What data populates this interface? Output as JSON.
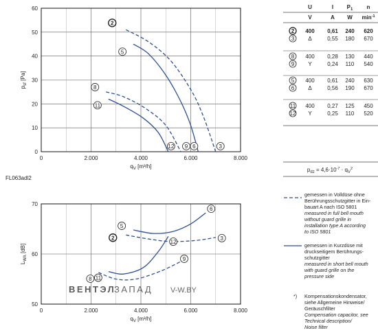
{
  "chart_data": [
    {
      "type": "line",
      "id": "FL063adl2",
      "caption": "FL063adl2",
      "xlabel": "qV [m³/h]",
      "ylabel": "pfl [Pa]",
      "xlim": [
        0,
        8000
      ],
      "ylim": [
        0,
        60
      ],
      "x_ticks": [
        0,
        2000,
        4000,
        6000,
        8000
      ],
      "x_tick_labels": [
        "0",
        "2.000",
        "4.000",
        "6.000",
        "8.000"
      ],
      "y_ticks": [
        0,
        10,
        20,
        30,
        40,
        50,
        60
      ],
      "y_tick_labels": [
        "0",
        "10",
        "20",
        "30",
        "40",
        "50",
        "60"
      ],
      "grid": true,
      "series": [
        {
          "marker": "2",
          "style": "dashed",
          "x": [
            3400,
            4300,
            5200,
            6000,
            6500,
            7000
          ],
          "y": [
            51,
            46,
            38,
            26,
            15,
            0
          ]
        },
        {
          "marker": "5",
          "style": "solid",
          "x": [
            3700,
            4300,
            5000,
            5600,
            6000,
            6300
          ],
          "y": [
            45,
            41,
            32,
            21,
            11,
            0
          ]
        },
        {
          "marker": "8",
          "style": "dashed",
          "x": [
            2600,
            3300,
            4200,
            5000,
            5600
          ],
          "y": [
            25,
            23,
            18,
            11,
            0
          ]
        },
        {
          "marker": "11",
          "style": "solid",
          "x": [
            2700,
            3300,
            4100,
            4700,
            5100
          ],
          "y": [
            22,
            19,
            14,
            8,
            0
          ]
        },
        {
          "marker": "12",
          "x": [
            5100
          ],
          "y": [
            0
          ]
        },
        {
          "marker": "9",
          "x": [
            5600
          ],
          "y": [
            0
          ]
        },
        {
          "marker": "6",
          "x": [
            6300
          ],
          "y": [
            0
          ]
        },
        {
          "marker": "3",
          "x": [
            7000
          ],
          "y": [
            0
          ]
        }
      ]
    },
    {
      "type": "line",
      "xlabel": "qV [m³/h]",
      "ylabel": "LWA [dB]",
      "xlim": [
        0,
        8000
      ],
      "ylim": [
        50,
        70
      ],
      "x_ticks": [
        0,
        2000,
        4000,
        6000,
        8000
      ],
      "x_tick_labels": [
        "0",
        "2.000",
        "4.000",
        "6.000",
        "8.000"
      ],
      "y_ticks": [
        50,
        60,
        70
      ],
      "y_tick_labels": [
        "50",
        "60",
        "70"
      ],
      "grid": true,
      "series": [
        {
          "marker": "5",
          "style": "solid",
          "x": [
            3700,
            4500,
            5300,
            6000,
            6600
          ],
          "y": [
            64.8,
            64.1,
            64.5,
            66.0,
            68.2
          ]
        },
        {
          "marker": "2",
          "style": "dashed",
          "x": [
            3400,
            4300,
            5200,
            6200,
            7000
          ],
          "y": [
            63.8,
            63.0,
            62.5,
            62.7,
            63.3
          ]
        },
        {
          "marker": "11",
          "style": "solid",
          "x": [
            2700,
            3300,
            4100,
            4700,
            5100
          ],
          "y": [
            56.5,
            56.0,
            57.3,
            60.5,
            63.5
          ]
        },
        {
          "marker": "8",
          "style": "dashed",
          "x": [
            2300,
            3000,
            3800,
            4800,
            5600
          ],
          "y": [
            56.3,
            55.0,
            55.0,
            56.6,
            58.5
          ]
        }
      ]
    }
  ],
  "table": {
    "headers": [
      "U",
      "I",
      "P1",
      "n"
    ],
    "units": [
      "V",
      "A",
      "W",
      "min-1"
    ],
    "groups": [
      [
        {
          "marker": "2",
          "u": "400",
          "i": "0,61",
          "p": "240",
          "n": "620",
          "bold": true
        },
        {
          "marker": "3",
          "u": "Δ",
          "i": "0,55",
          "p": "180",
          "n": "670",
          "bold": false
        }
      ],
      [
        {
          "marker": "8",
          "u": "400",
          "i": "0,28",
          "p": "130",
          "n": "440",
          "bold": false
        },
        {
          "marker": "9",
          "u": "Y",
          "i": "0,24",
          "p": "110",
          "n": "540",
          "bold": false
        }
      ],
      [
        {
          "marker": "5",
          "u": "400",
          "i": "0,61",
          "p": "240",
          "n": "630",
          "bold": false
        },
        {
          "marker": "6",
          "u": "Δ",
          "i": "0,56",
          "p": "190",
          "n": "670",
          "bold": false
        }
      ],
      [
        {
          "marker": "11",
          "u": "400",
          "i": "0,27",
          "p": "125",
          "n": "450",
          "bold": false
        },
        {
          "marker": "12",
          "u": "Y",
          "i": "0,25",
          "p": "110",
          "n": "520",
          "bold": false
        }
      ]
    ],
    "formula": "pdz = 4,6·10-7 · qV²"
  },
  "legend": {
    "dashed": {
      "de": [
        "gemessen in Volldüse ohne",
        "Berührungsschutzgitter in Ein-",
        "bauart A nach ISO 5801"
      ],
      "en": [
        "measured in full bell mouth",
        "without guard grille in",
        "installation type A according",
        "to ISO 5801"
      ]
    },
    "solid": {
      "de": [
        "gemessen in Kurzdüse mit",
        "druckseitigem Berührungs-",
        "schutzgitter"
      ],
      "en": [
        "measured in short bell mouth",
        "with guard grille on the",
        "pressure side"
      ]
    },
    "note": {
      "symbol": "*)",
      "de": [
        "Kompensationskondensator,",
        "siehe Allgemeine Hinweise/",
        "Geräuschfilter"
      ],
      "en": [
        "Compensation capacitor, see",
        "Technical description/",
        "Noise filter"
      ]
    }
  },
  "watermark": {
    "left": "ВЕНТЭЛ",
    "right": "ЗАПАД",
    "site": "V-W.BY"
  },
  "colors": {
    "curve": "#2b4e94",
    "grid": "#555555",
    "frame": "#111111"
  }
}
